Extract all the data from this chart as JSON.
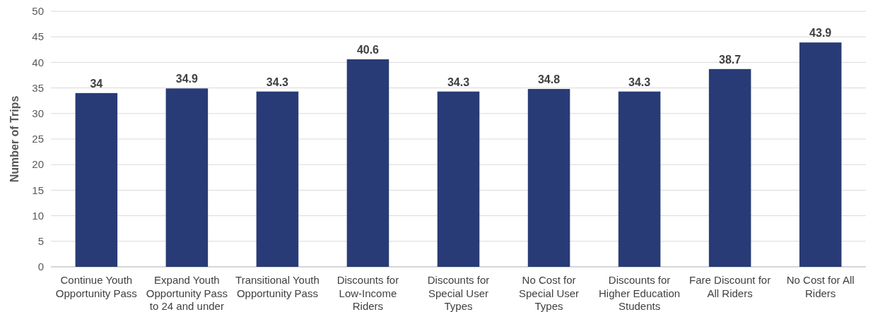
{
  "chart_data": {
    "type": "bar",
    "ylabel": "Number of Trips",
    "categories": [
      "Continue Youth Opportunity Pass",
      "Expand Youth Opportunity Pass to 24 and under",
      "Transitional Youth Opportunity Pass",
      "Discounts for Low-Income Riders",
      "Discounts for Special User Types",
      "No Cost for Special User Types",
      "Discounts for Higher Education Students",
      "Fare Discount for All Riders",
      "No Cost for All Riders"
    ],
    "values": [
      34,
      34.9,
      34.3,
      40.6,
      34.3,
      34.8,
      34.3,
      38.7,
      43.9
    ],
    "color": "#283b76",
    "ylim": [
      0,
      50
    ],
    "yticks": [
      0,
      5,
      10,
      15,
      20,
      25,
      30,
      35,
      40,
      45,
      50
    ],
    "grid": "y",
    "data_labels": true
  }
}
